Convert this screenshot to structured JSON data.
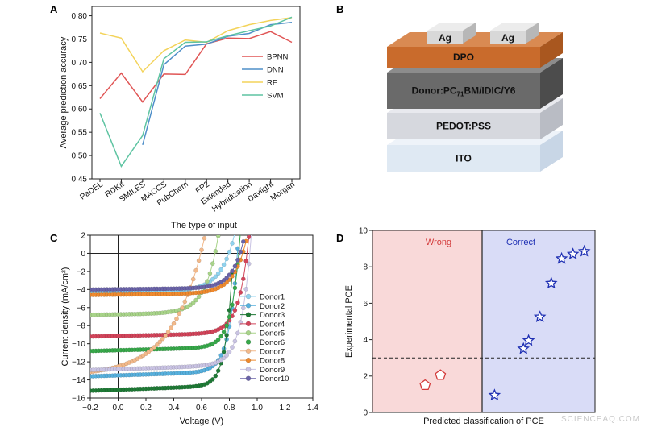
{
  "watermark": "SCIENCEAQ.COM",
  "panels": {
    "a": {
      "letter": "A"
    },
    "b": {
      "letter": "B"
    },
    "c": {
      "letter": "C"
    },
    "d": {
      "letter": "D"
    }
  },
  "device": {
    "layers": [
      {
        "key": "ito",
        "label": "ITO",
        "front": "#dfe9f3",
        "top": "#eef3f9",
        "side": "#c8d6e6"
      },
      {
        "key": "pedot",
        "label": "PEDOT:PSS",
        "front": "#d6d8de",
        "top": "#e8e9ee",
        "side": "#b9bcc4"
      },
      {
        "key": "active",
        "label_main": "Donor:PC",
        "label_sub": "71",
        "label_rest": "BM/IDIC/Y6",
        "front": "#6a6a6a",
        "top": "#8c8c8c",
        "side": "#4c4c4c"
      },
      {
        "key": "dpo",
        "label": "DPO",
        "front": "#c96b2c",
        "top": "#d98a52",
        "side": "#a9571f"
      }
    ],
    "electrodes": [
      {
        "label": "Ag"
      },
      {
        "label": "Ag"
      }
    ],
    "electrode_color": "#d8d8d8"
  },
  "chart_data": [
    {
      "id": "A",
      "type": "line",
      "xlabel": "The type of input",
      "ylabel": "Average prediction accuracy",
      "ylim": [
        0.45,
        0.82
      ],
      "yticks": [
        0.45,
        0.5,
        0.55,
        0.6,
        0.65,
        0.7,
        0.75,
        0.8
      ],
      "categories": [
        "PaDEL",
        "RDKit",
        "SMILES",
        "MACCS",
        "PubChem",
        "FP2",
        "Extended",
        "Hybridization",
        "Daylight",
        "Morgan"
      ],
      "legend_position": "right",
      "series": [
        {
          "name": "BPNN",
          "color": "#e05555",
          "values": [
            0.622,
            0.677,
            0.615,
            0.675,
            0.674,
            0.74,
            0.752,
            0.751,
            0.766,
            0.743
          ]
        },
        {
          "name": "DNN",
          "color": "#4f8fc9",
          "values": [
            null,
            null,
            0.523,
            0.695,
            0.735,
            0.739,
            0.756,
            0.762,
            0.781,
            0.786
          ]
        },
        {
          "name": "RF",
          "color": "#f3d35a",
          "values": [
            0.763,
            0.752,
            0.68,
            0.725,
            0.748,
            0.743,
            0.768,
            0.781,
            0.79,
            0.796
          ]
        },
        {
          "name": "SVM",
          "color": "#5ec4a2",
          "values": [
            0.591,
            0.477,
            0.543,
            0.708,
            0.743,
            0.744,
            0.757,
            0.768,
            0.778,
            0.797
          ]
        }
      ]
    },
    {
      "id": "C",
      "type": "line",
      "xlabel": "Voltage (V)",
      "ylabel": "Current density (mA/cm²)",
      "xlim": [
        -0.2,
        1.4
      ],
      "ylim": [
        -16,
        2
      ],
      "xticks": [
        -0.2,
        0.0,
        0.2,
        0.4,
        0.6,
        0.8,
        1.0,
        1.2,
        1.4
      ],
      "xtick_labels": [
        "−0.2",
        "0.0",
        "0.2",
        "0.4",
        "0.6",
        "0.8",
        "1.0",
        "1.2",
        "1.4"
      ],
      "yticks": [
        2,
        0,
        -2,
        -4,
        -6,
        -8,
        -10,
        -12,
        -14,
        -16
      ],
      "ytick_labels": [
        "2",
        "0",
        "−2",
        "−4",
        "−6",
        "−8",
        "−10",
        "−12",
        "−14",
        "−16"
      ],
      "legend_position": "right",
      "series": [
        {
          "name": "Donor1",
          "color": "#8fd3ef",
          "jsc": -4.3,
          "voc": 0.8,
          "n": 0.1
        },
        {
          "name": "Donor2",
          "color": "#57b0dd",
          "jsc": -13.6,
          "voc": 0.86,
          "n": 0.06
        },
        {
          "name": "Donor3",
          "color": "#1f7a36",
          "jsc": -15.2,
          "voc": 0.83,
          "n": 0.05
        },
        {
          "name": "Donor4",
          "color": "#d2445a",
          "jsc": -9.2,
          "voc": 0.93,
          "n": 0.07
        },
        {
          "name": "Donor5",
          "color": "#a8d489",
          "jsc": -6.8,
          "voc": 0.7,
          "n": 0.09
        },
        {
          "name": "Donor6",
          "color": "#37a84a",
          "jsc": -10.8,
          "voc": 0.87,
          "n": 0.06
        },
        {
          "name": "Donor7",
          "color": "#f3b98a",
          "jsc": -12.6,
          "voc": 0.6,
          "n": 0.22
        },
        {
          "name": "Donor8",
          "color": "#ef8a2e",
          "jsc": -4.6,
          "voc": 0.9,
          "n": 0.09
        },
        {
          "name": "Donor9",
          "color": "#c9c3e3",
          "jsc": -12.9,
          "voc": 0.95,
          "n": 0.07
        },
        {
          "name": "Donor10",
          "color": "#6a63a8",
          "jsc": -4.0,
          "voc": 0.88,
          "n": 0.08
        }
      ]
    },
    {
      "id": "D",
      "type": "scatter",
      "xlabel": "Predicted classification of PCE",
      "ylabel": "Experimental PCE",
      "ylim": [
        0,
        10
      ],
      "yticks": [
        0,
        2,
        4,
        6,
        8,
        10
      ],
      "threshold": 3,
      "regions": [
        {
          "name": "Wrong",
          "text_color": "#d33b3b",
          "fill": "#f9d9d9"
        },
        {
          "name": "Correct",
          "text_color": "#1e2fb3",
          "fill": "#d9dcf7"
        }
      ],
      "wrong_points": [
        {
          "x": 0.48,
          "y": 1.5
        },
        {
          "x": 0.62,
          "y": 2.05
        }
      ],
      "correct_points": [
        {
          "x": 0.12,
          "y": 0.95
        },
        {
          "x": 0.4,
          "y": 3.5
        },
        {
          "x": 0.45,
          "y": 3.95
        },
        {
          "x": 0.56,
          "y": 5.25
        },
        {
          "x": 0.67,
          "y": 7.1
        },
        {
          "x": 0.77,
          "y": 8.45
        },
        {
          "x": 0.88,
          "y": 8.7
        },
        {
          "x": 0.99,
          "y": 8.85
        }
      ],
      "wrong_marker_color": "#d33b3b",
      "correct_marker_color": "#1e2fb3"
    }
  ]
}
